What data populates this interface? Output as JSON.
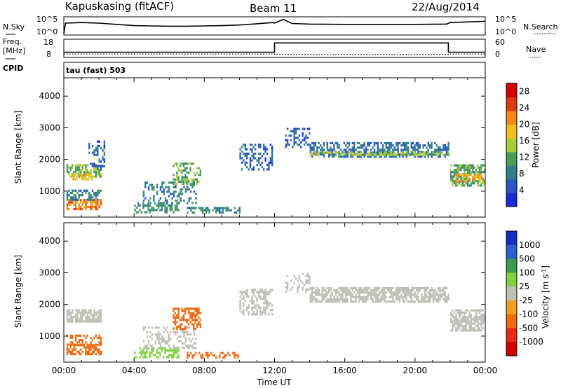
{
  "header": {
    "station": "Kapuskasing (fitACF)",
    "beam": "Beam 11",
    "date": "22/Aug/2014"
  },
  "strip1": {
    "left_label": "N.Sky",
    "right_label": "N.Search",
    "left_ticks": [
      "10^5",
      "10^0"
    ],
    "right_ticks": [
      "10^5",
      "10^0"
    ]
  },
  "strip2": {
    "left_label_1": "Freq.",
    "left_label_2": "[MHz]",
    "right_label": "Nave",
    "left_ticks": [
      "18",
      "8"
    ],
    "right_ticks": [
      "60",
      "0"
    ]
  },
  "cpid_row": {
    "label": "CPID",
    "text": "tau (fast) 503"
  },
  "colors": {
    "power_scale": [
      "#1a2ad6",
      "#2a55c4",
      "#2f7f88",
      "#4a9a5a",
      "#a8cc3c",
      "#f0c020",
      "#f08a10",
      "#e03a10",
      "#d40000"
    ],
    "velocity_scale": [
      "#1030c0",
      "#2a60c8",
      "#3a9a50",
      "#80d040",
      "#bfbfb6",
      "#f0a020",
      "#ee6a10",
      "#e82a10",
      "#d40000"
    ],
    "ground_scatter": "#bfbfb6"
  },
  "chart_data": [
    {
      "type": "line",
      "title": "",
      "name": "N.Sky / N.Search",
      "xlabel": "",
      "ylabel": "",
      "xlim": [
        0,
        24
      ],
      "ylim": [
        0,
        5
      ],
      "y_scale": "log10",
      "series": [
        {
          "name": "N.Sky",
          "x": [
            0,
            0.1,
            1,
            2,
            3,
            4,
            5,
            6,
            7,
            8,
            9,
            10,
            11,
            11.9,
            12,
            12.5,
            13,
            14,
            16,
            18,
            20,
            21.8,
            22,
            23,
            24
          ],
          "values": [
            0,
            3.4,
            3.6,
            3.4,
            3.0,
            2.6,
            2.5,
            2.4,
            2.4,
            2.5,
            2.6,
            2.8,
            3.2,
            3.6,
            3.4,
            4.6,
            3.3,
            3.1,
            3.0,
            3.0,
            3.0,
            3.1,
            3.6,
            3.8,
            4.0
          ]
        }
      ]
    },
    {
      "type": "line",
      "title": "",
      "xlabel": "",
      "ylabel": "Freq. [MHz]",
      "xlim": [
        0,
        24
      ],
      "ylim_left": [
        8,
        18
      ],
      "ylim_right": [
        0,
        60
      ],
      "series": [
        {
          "name": "Freq.",
          "x": [
            0,
            12,
            12,
            21.9,
            21.9,
            24
          ],
          "values": [
            10.5,
            10.5,
            16.5,
            16.5,
            10.5,
            10.5
          ]
        },
        {
          "name": "Nave",
          "x": [
            0,
            12,
            12,
            21.9,
            21.9,
            24
          ],
          "values": [
            8,
            8,
            6,
            6,
            8,
            8
          ]
        }
      ]
    },
    {
      "type": "heatmap",
      "title": "",
      "xlabel": "",
      "ylabel": "Slant Range [km]",
      "colorbar_label": "Power [dB]",
      "colorbar_ticks": [
        "4",
        "8",
        "12",
        "16",
        "20",
        "24",
        "28"
      ],
      "x_ticks": [
        "00:00",
        "04:00",
        "08:00",
        "12:00",
        "16:00",
        "20:00",
        "00:00"
      ],
      "y_ticks": [
        "1000",
        "2000",
        "3000",
        "4000"
      ],
      "xlim": [
        0,
        24
      ],
      "ylim": [
        180,
        4580
      ],
      "clim": [
        0,
        30
      ],
      "regions": [
        {
          "t0": 0.15,
          "t1": 2.1,
          "r0": 1450,
          "r1": 1850,
          "val": 14,
          "density": 0.7
        },
        {
          "t0": 0.15,
          "t1": 2.1,
          "r0": 450,
          "r1": 750,
          "val": 22,
          "density": 0.8
        },
        {
          "t0": 0.15,
          "t1": 2.1,
          "r0": 750,
          "r1": 1050,
          "val": 8,
          "density": 0.5
        },
        {
          "t0": 0.5,
          "t1": 1.6,
          "r0": 1350,
          "r1": 1550,
          "val": 18,
          "density": 0.7
        },
        {
          "t0": 1.4,
          "t1": 2.3,
          "r0": 1700,
          "r1": 2600,
          "val": 5,
          "density": 0.3
        },
        {
          "t0": 4.0,
          "t1": 6.5,
          "r0": 350,
          "r1": 650,
          "val": 10,
          "density": 0.5
        },
        {
          "t0": 4.5,
          "t1": 7.5,
          "r0": 650,
          "r1": 1300,
          "val": 8,
          "density": 0.35
        },
        {
          "t0": 6.2,
          "t1": 7.8,
          "r0": 1200,
          "r1": 1900,
          "val": 12,
          "density": 0.5
        },
        {
          "t0": 7.0,
          "t1": 10.0,
          "r0": 320,
          "r1": 500,
          "val": 9,
          "density": 0.5
        },
        {
          "t0": 10.0,
          "t1": 11.9,
          "r0": 1700,
          "r1": 2500,
          "val": 6,
          "density": 0.45
        },
        {
          "t0": 12.6,
          "t1": 14.0,
          "r0": 2400,
          "r1": 3000,
          "val": 5,
          "density": 0.4
        },
        {
          "t0": 14.0,
          "t1": 21.9,
          "r0": 2100,
          "r1": 2550,
          "val": 7,
          "density": 0.55
        },
        {
          "t0": 14.0,
          "t1": 21.9,
          "r0": 2150,
          "r1": 2250,
          "val": 14,
          "density": 0.7
        },
        {
          "t0": 22.0,
          "t1": 24.0,
          "r0": 1200,
          "r1": 1850,
          "val": 12,
          "density": 0.7
        },
        {
          "t0": 22.3,
          "t1": 23.8,
          "r0": 1300,
          "r1": 1550,
          "val": 20,
          "density": 0.6
        }
      ]
    },
    {
      "type": "heatmap",
      "title": "",
      "xlabel": "Time UT",
      "ylabel": "Slant Range [km]",
      "colorbar_label": "Velocity [m s^-1]",
      "colorbar_ticks": [
        "1000",
        "500",
        "100",
        "25",
        "-25",
        "-100",
        "-500",
        "-1000"
      ],
      "x_ticks": [
        "00:00",
        "04:00",
        "08:00",
        "12:00",
        "16:00",
        "20:00",
        "00:00"
      ],
      "y_ticks": [
        "1000",
        "2000",
        "3000",
        "4000"
      ],
      "xlim": [
        0,
        24
      ],
      "ylim": [
        180,
        4580
      ],
      "regions": [
        {
          "t0": 0.15,
          "t1": 2.1,
          "r0": 1450,
          "r1": 1850,
          "val": 0,
          "density": 0.8
        },
        {
          "t0": 0.15,
          "t1": 2.1,
          "r0": 450,
          "r1": 750,
          "val": -300,
          "density": 0.7
        },
        {
          "t0": 0.15,
          "t1": 2.1,
          "r0": 750,
          "r1": 1050,
          "val": -150,
          "density": 0.5
        },
        {
          "t0": 4.0,
          "t1": 6.5,
          "r0": 350,
          "r1": 650,
          "val": 60,
          "density": 0.5
        },
        {
          "t0": 4.5,
          "t1": 7.5,
          "r0": 650,
          "r1": 1300,
          "val": 0,
          "density": 0.35
        },
        {
          "t0": 6.2,
          "t1": 7.8,
          "r0": 1200,
          "r1": 1900,
          "val": -300,
          "density": 0.55
        },
        {
          "t0": 7.0,
          "t1": 10.0,
          "r0": 320,
          "r1": 500,
          "val": -200,
          "density": 0.5
        },
        {
          "t0": 10.0,
          "t1": 11.9,
          "r0": 1700,
          "r1": 2500,
          "val": 0,
          "density": 0.5
        },
        {
          "t0": 12.6,
          "t1": 14.0,
          "r0": 2400,
          "r1": 3000,
          "val": 0,
          "density": 0.4
        },
        {
          "t0": 14.0,
          "t1": 21.9,
          "r0": 2100,
          "r1": 2550,
          "val": 0,
          "density": 0.75
        },
        {
          "t0": 22.0,
          "t1": 24.0,
          "r0": 1200,
          "r1": 1850,
          "val": 0,
          "density": 0.75
        }
      ]
    }
  ]
}
